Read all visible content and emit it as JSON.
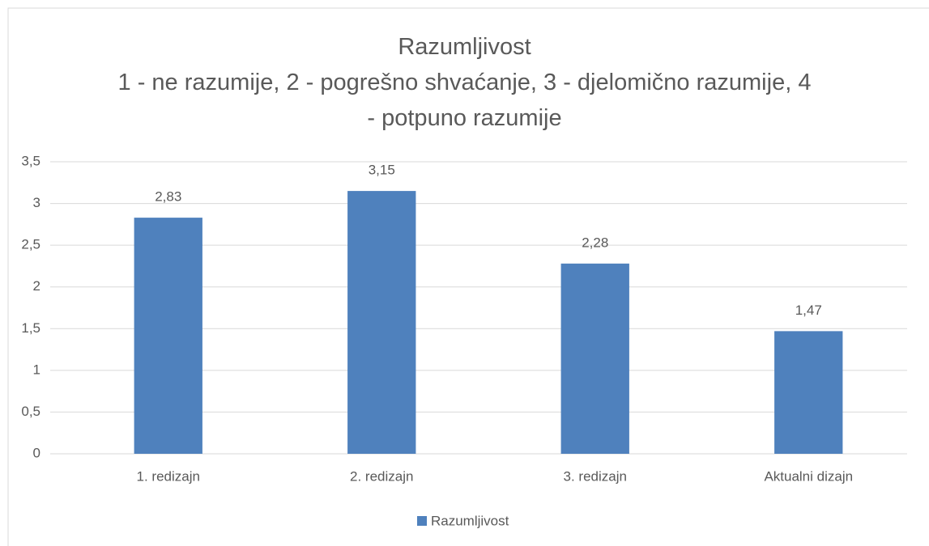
{
  "chart_data": {
    "type": "bar",
    "title": "Razumljivost",
    "subtitle": "1 - ne razumije, 2 - pogrešno shvaćanje, 3 - djelomično razumije, 4 - potpuno razumije",
    "categories": [
      "1. redizajn",
      "2. redizajn",
      "3. redizajn",
      "Aktualni dizajn"
    ],
    "series": [
      {
        "name": "Razumljivost",
        "color": "#4f81bd",
        "values": [
          2.83,
          3.15,
          2.28,
          1.47
        ],
        "value_labels": [
          "2,83",
          "3,15",
          "2,28",
          "1,47"
        ]
      }
    ],
    "ylim": [
      0,
      3.5
    ],
    "yticks": [
      0,
      {
        "value": 0.5,
        "label": "0,5"
      },
      1,
      {
        "value": 1.5,
        "label": "1,5"
      },
      2,
      {
        "value": 2.5,
        "label": "2,5"
      },
      3,
      {
        "value": 3.5,
        "label": "3,5"
      }
    ],
    "grid": true,
    "legend": "bottom"
  }
}
